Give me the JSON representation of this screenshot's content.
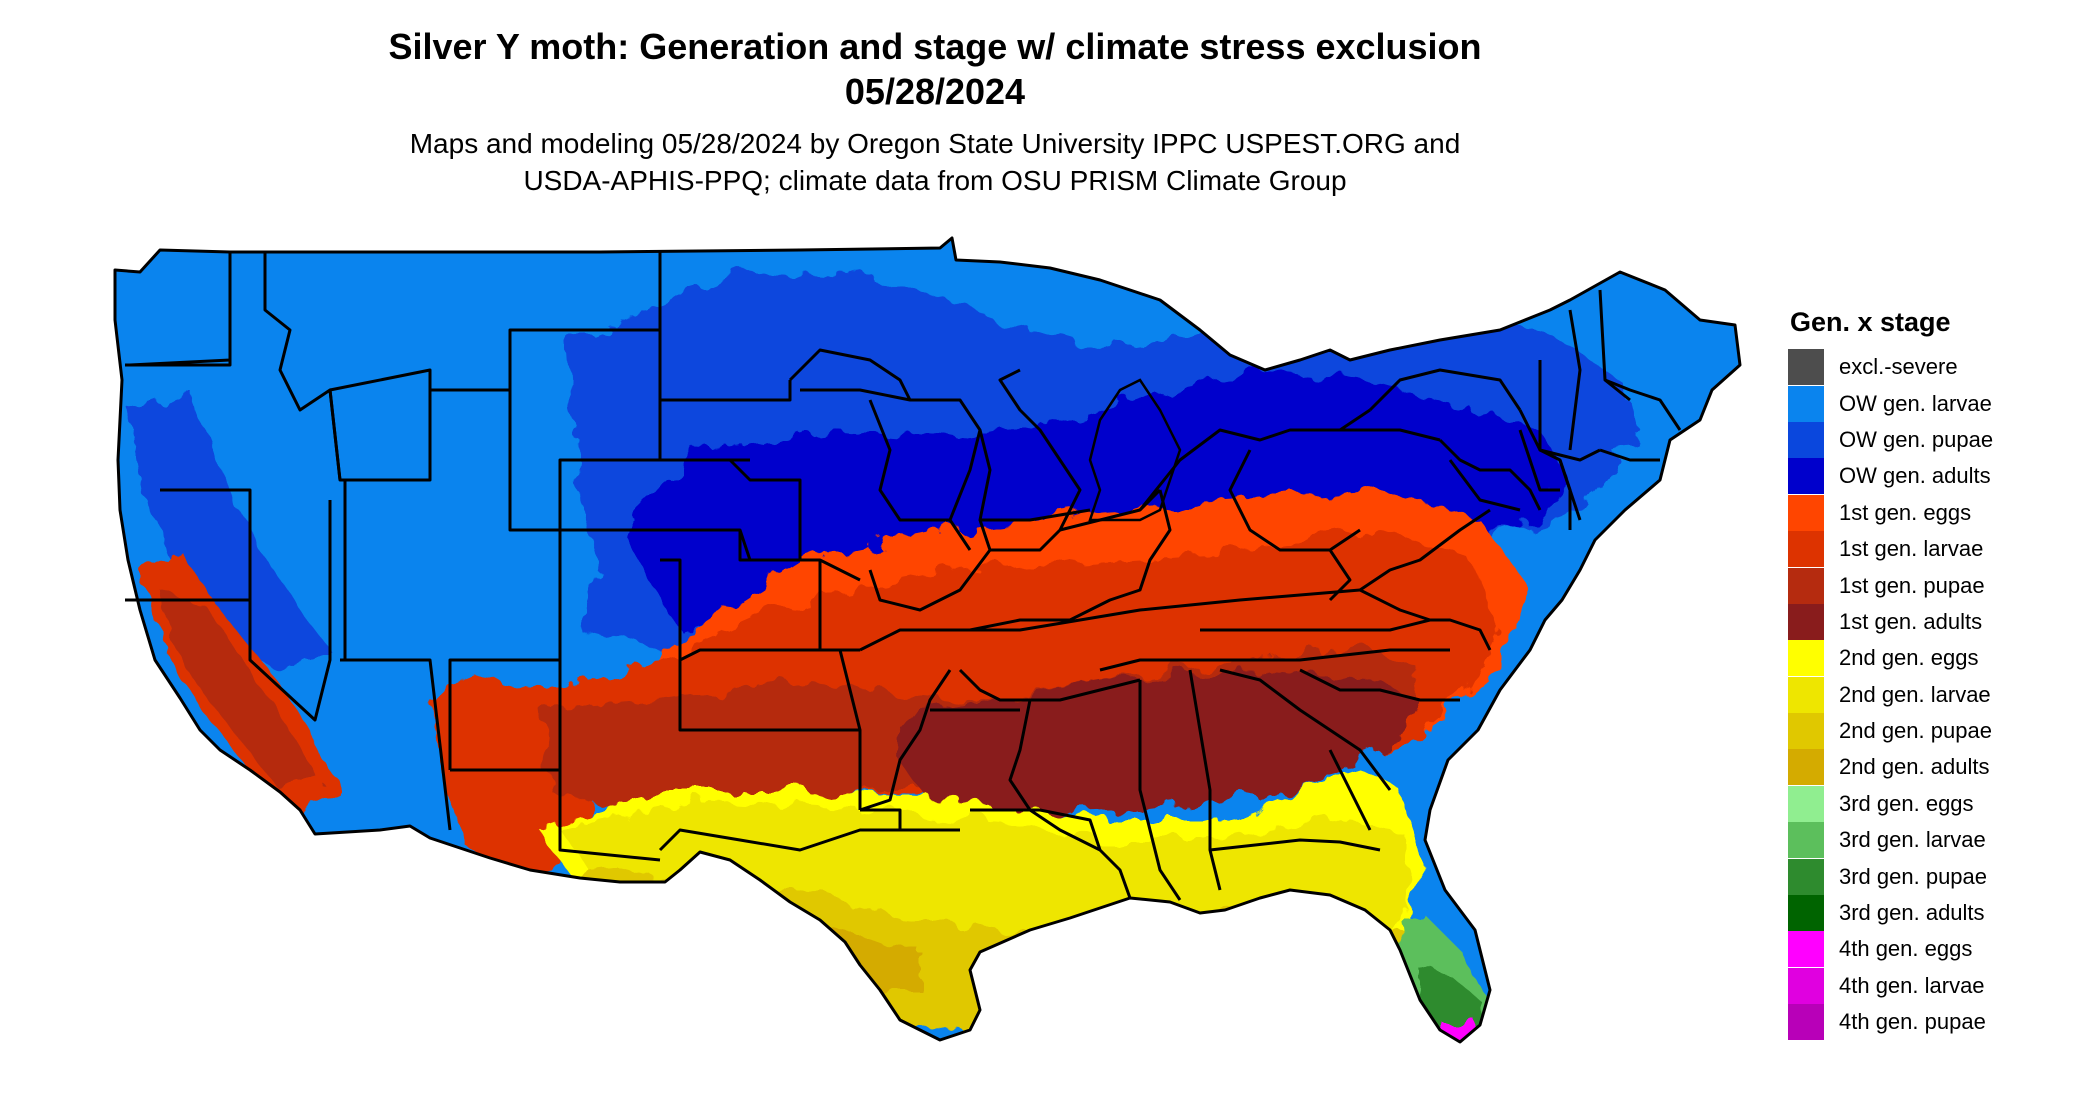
{
  "title": {
    "line1": "Silver Y moth: Generation and stage w/ climate stress exclusion",
    "line2": "05/28/2024"
  },
  "subtitle": {
    "line1": "Maps and modeling 05/28/2024 by Oregon State University IPPC USPEST.ORG and",
    "line2": "USDA-APHIS-PPQ; climate data from OSU PRISM Climate Group"
  },
  "legend": {
    "title": "Gen. x stage",
    "items": [
      {
        "label": "excl.-severe",
        "color": "#4d4d4d"
      },
      {
        "label": "OW gen. larvae",
        "color": "#0a84ee"
      },
      {
        "label": "OW gen. pupae",
        "color": "#0a47dd"
      },
      {
        "label": "OW gen. adults",
        "color": "#0000cc"
      },
      {
        "label": "1st gen. eggs",
        "color": "#ff4500"
      },
      {
        "label": "1st gen. larvae",
        "color": "#dd3300"
      },
      {
        "label": "1st gen. pupae",
        "color": "#b52b0f"
      },
      {
        "label": "1st gen. adults",
        "color": "#891c1c"
      },
      {
        "label": "2nd gen. eggs",
        "color": "#ffff00"
      },
      {
        "label": "2nd gen. larvae",
        "color": "#eee600"
      },
      {
        "label": "2nd gen. pupae",
        "color": "#e0c800"
      },
      {
        "label": "2nd gen. adults",
        "color": "#d4ab00"
      },
      {
        "label": "3rd gen. eggs",
        "color": "#90ee90"
      },
      {
        "label": "3rd gen. larvae",
        "color": "#5cbf5c"
      },
      {
        "label": "3rd gen. pupae",
        "color": "#2e8b2e"
      },
      {
        "label": "3rd gen. adults",
        "color": "#006400"
      },
      {
        "label": "4th gen. eggs",
        "color": "#ff00ff"
      },
      {
        "label": "4th gen. larvae",
        "color": "#e000e0"
      },
      {
        "label": "4th gen. pupae",
        "color": "#b800b8"
      }
    ]
  }
}
